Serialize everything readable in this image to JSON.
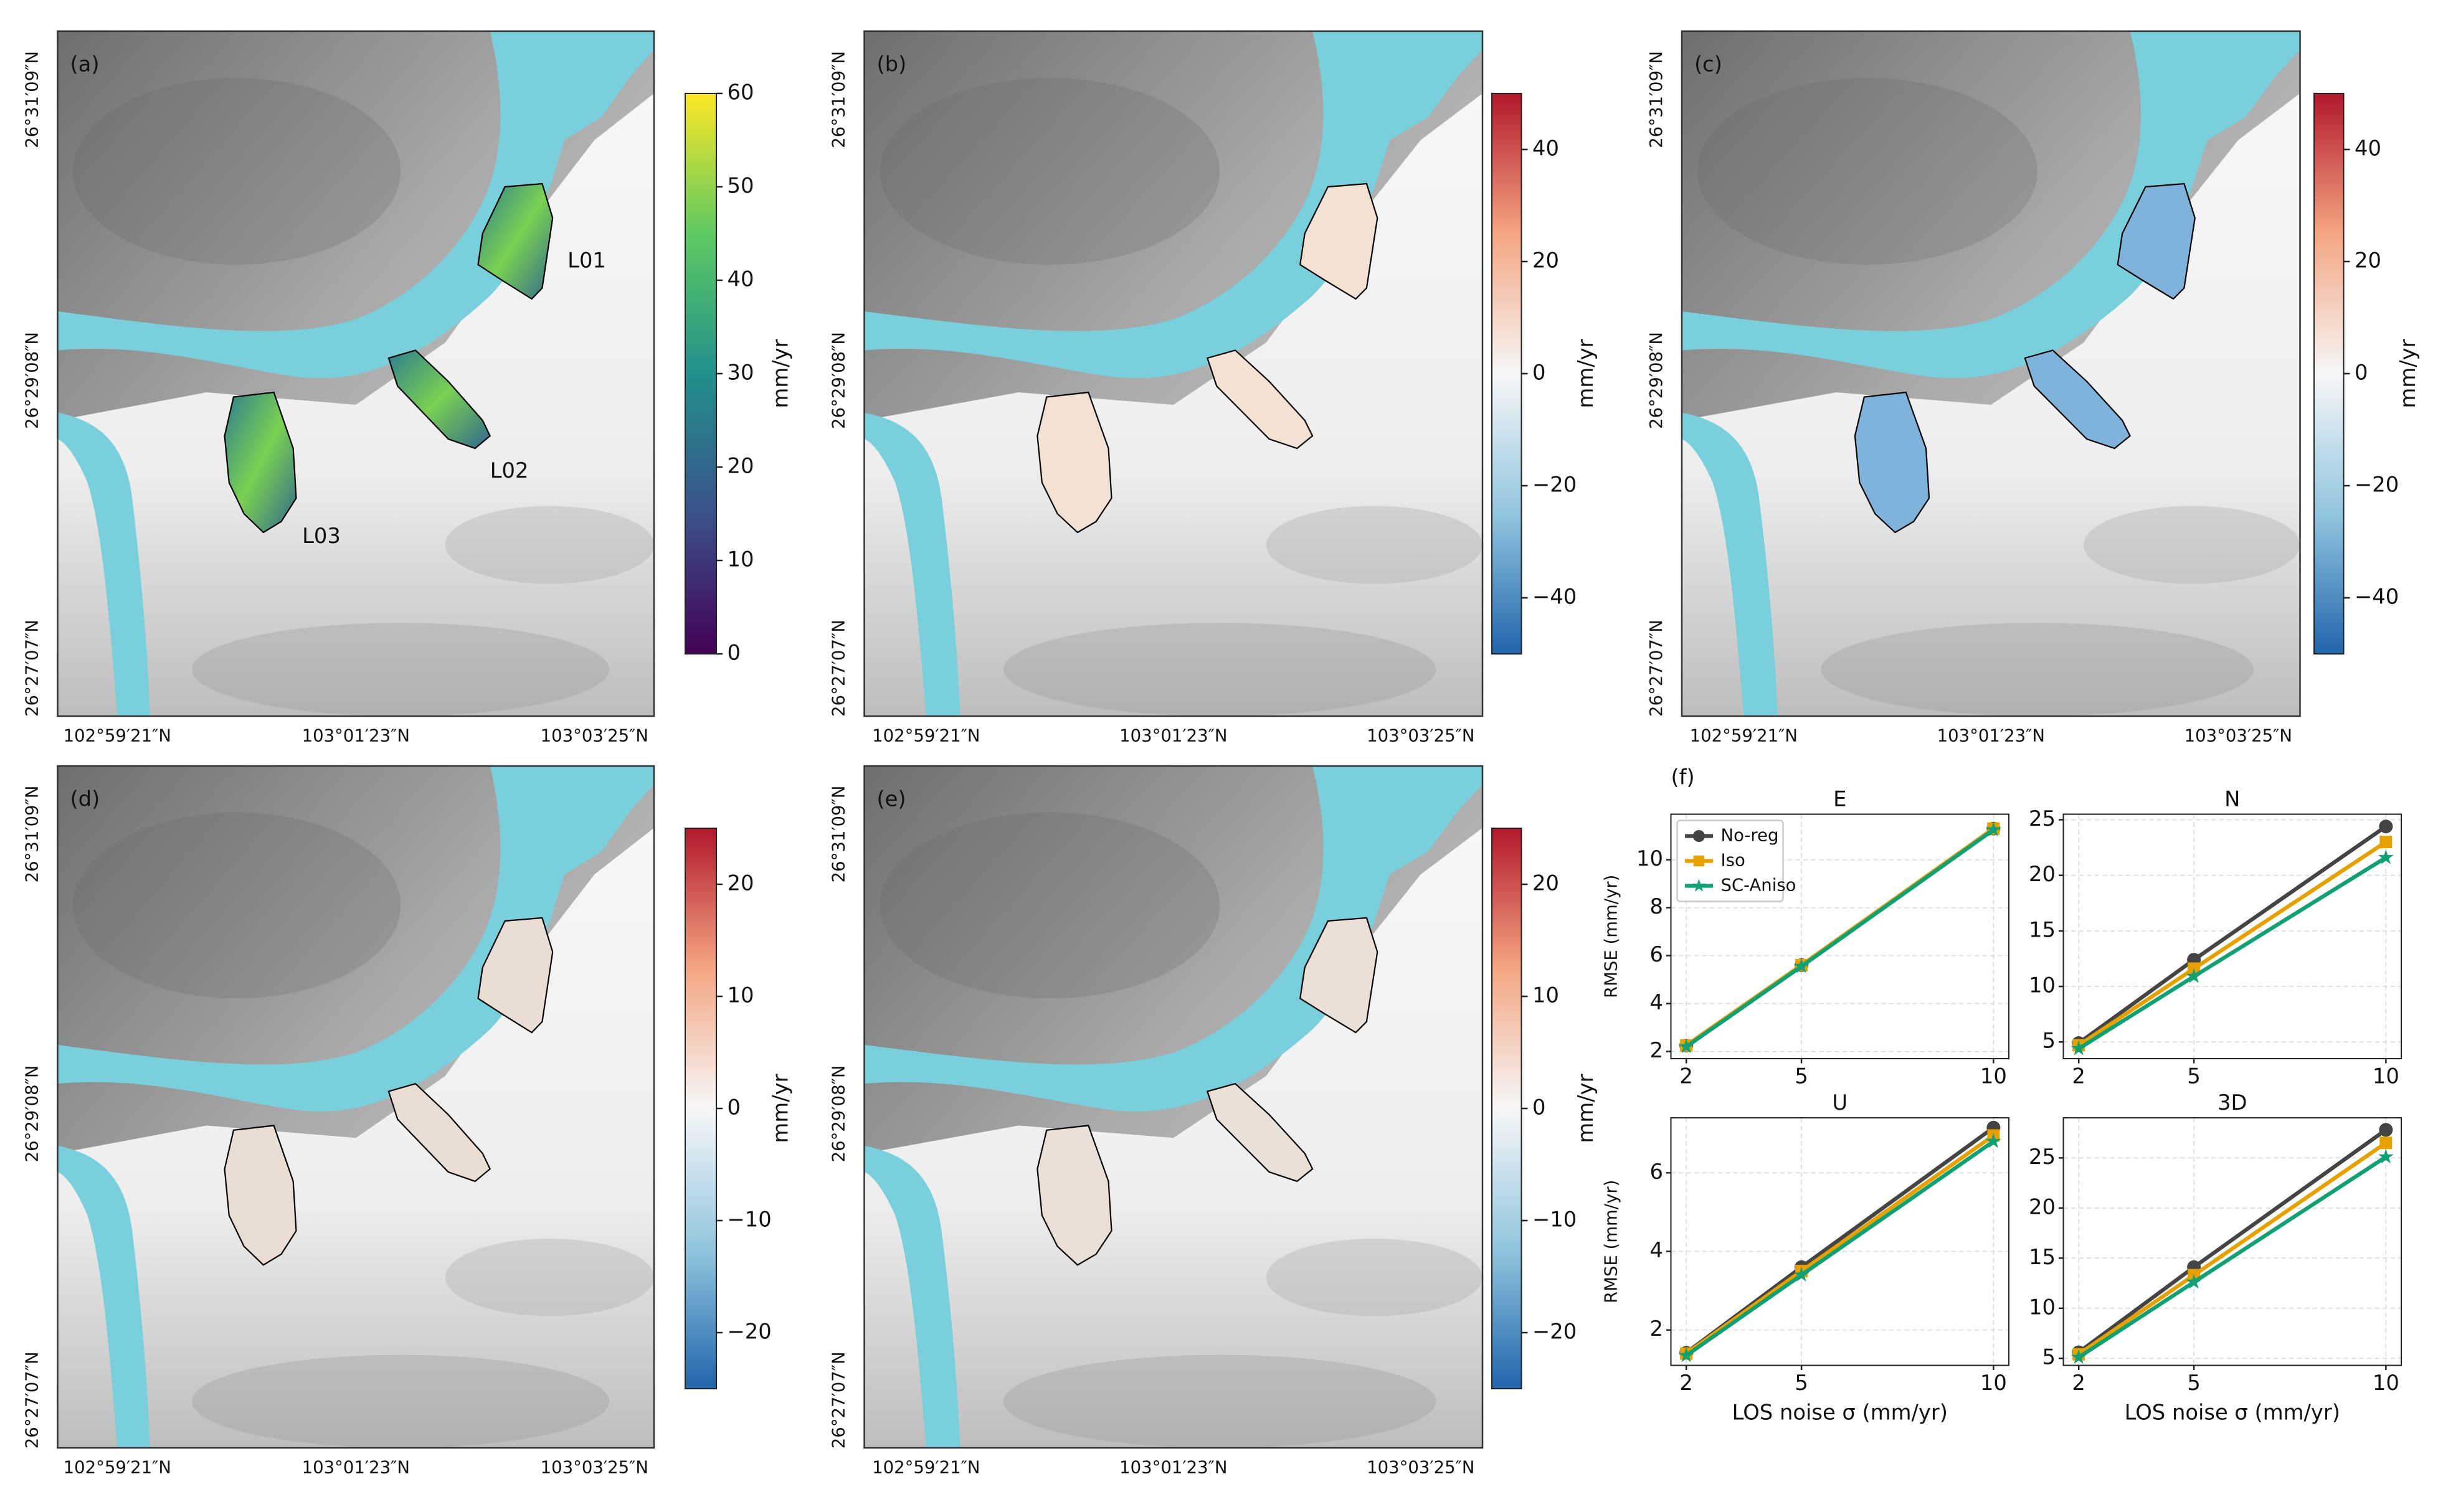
{
  "chart_data": [
    {
      "type": "map",
      "panel_label": "(a)",
      "xtick_labels": [
        "102°59′21″N",
        "103°01′23″N",
        "103°03′25″N"
      ],
      "ytick_labels": [
        "26°31′09″N",
        "26°29′08″N",
        "26°27′07″N"
      ],
      "colorbar": {
        "label": "mm/yr",
        "colormap": "viridis",
        "lim": [
          0,
          60
        ],
        "ticks": [
          0,
          10,
          20,
          30,
          40,
          50,
          60
        ]
      },
      "annotations": [
        "L01",
        "L02",
        "L03"
      ]
    },
    {
      "type": "map",
      "panel_label": "(b)",
      "xtick_labels": [
        "102°59′21″N",
        "103°01′23″N",
        "103°03′25″N"
      ],
      "ytick_labels": [
        "26°31′09″N",
        "26°29′08″N",
        "26°27′07″N"
      ],
      "colorbar": {
        "label": "mm/yr",
        "colormap": "RdBu_r",
        "lim": [
          -50,
          50
        ],
        "ticks": [
          {
            "value": -40,
            "label": "−40"
          },
          {
            "value": -20,
            "label": "−20"
          },
          0,
          20,
          40
        ]
      }
    },
    {
      "type": "map",
      "panel_label": "(c)",
      "xtick_labels": [
        "102°59′21″N",
        "103°01′23″N",
        "103°03′25″N"
      ],
      "ytick_labels": [
        "26°31′09″N",
        "26°29′08″N",
        "26°27′07″N"
      ],
      "colorbar": {
        "label": "mm/yr",
        "colormap": "RdBu_r",
        "lim": [
          -50,
          50
        ],
        "ticks": [
          {
            "value": -40,
            "label": "−40"
          },
          {
            "value": -20,
            "label": "−20"
          },
          0,
          20,
          40
        ]
      }
    },
    {
      "type": "map",
      "panel_label": "(d)",
      "xtick_labels": [
        "102°59′21″N",
        "103°01′23″N",
        "103°03′25″N"
      ],
      "ytick_labels": [
        "26°31′09″N",
        "26°29′08″N",
        "26°27′07″N"
      ],
      "colorbar": {
        "label": "mm/yr",
        "colormap": "RdBu_r",
        "lim": [
          -25,
          25
        ],
        "ticks": [
          {
            "value": -20,
            "label": "−20"
          },
          {
            "value": -10,
            "label": "−10"
          },
          0,
          10,
          20
        ]
      }
    },
    {
      "type": "map",
      "panel_label": "(e)",
      "xtick_labels": [
        "102°59′21″N",
        "103°01′23″N",
        "103°03′25″N"
      ],
      "ytick_labels": [
        "26°31′09″N",
        "26°29′08″N",
        "26°27′07″N"
      ],
      "colorbar": {
        "label": "mm/yr",
        "colormap": "RdBu_r",
        "lim": [
          -25,
          25
        ],
        "ticks": [
          {
            "value": -20,
            "label": "−20"
          },
          {
            "value": -10,
            "label": "−10"
          },
          0,
          10,
          20
        ]
      }
    },
    {
      "type": "line",
      "panel_label": "(f)",
      "title": "E",
      "ylabel": "RMSE (mm/yr)",
      "legend": "upper left",
      "grid": true,
      "x": [
        2,
        5,
        10
      ],
      "xlim": [
        1.6,
        10.4
      ],
      "xticks": [
        2,
        5,
        10
      ],
      "ylim": [
        1.7,
        11.9
      ],
      "yticks": [
        2,
        4,
        6,
        8,
        10
      ],
      "series": [
        {
          "name": "No-reg",
          "color": "#444444",
          "marker": "circle",
          "values": [
            2.25,
            5.6,
            11.3
          ]
        },
        {
          "name": "Iso",
          "color": "#e6a100",
          "marker": "square",
          "values": [
            2.25,
            5.6,
            11.3
          ]
        },
        {
          "name": "SC-Aniso",
          "color": "#11a074",
          "marker": "star",
          "values": [
            2.2,
            5.55,
            11.25
          ]
        }
      ]
    },
    {
      "type": "line",
      "title": "N",
      "grid": true,
      "x": [
        2,
        5,
        10
      ],
      "xlim": [
        1.6,
        10.4
      ],
      "xticks": [
        2,
        5,
        10
      ],
      "ylim": [
        3.5,
        25.5
      ],
      "yticks": [
        5,
        10,
        15,
        20,
        25
      ],
      "series": [
        {
          "name": "No-reg",
          "color": "#444444",
          "marker": "circle",
          "values": [
            4.9,
            12.4,
            24.4
          ]
        },
        {
          "name": "Iso",
          "color": "#e6a100",
          "marker": "square",
          "values": [
            4.7,
            11.6,
            23.0
          ]
        },
        {
          "name": "SC-Aniso",
          "color": "#11a074",
          "marker": "star",
          "values": [
            4.4,
            10.9,
            21.6
          ]
        }
      ]
    },
    {
      "type": "line",
      "title": "U",
      "ylabel": "RMSE (mm/yr)",
      "xlabel": "LOS noise σ (mm/yr)",
      "grid": true,
      "x": [
        2,
        5,
        10
      ],
      "xlim": [
        1.6,
        10.4
      ],
      "xticks": [
        2,
        5,
        10
      ],
      "ylim": [
        1.1,
        7.4
      ],
      "yticks": [
        2,
        4,
        6
      ],
      "series": [
        {
          "name": "No-reg",
          "color": "#444444",
          "marker": "circle",
          "values": [
            1.42,
            3.6,
            7.15
          ]
        },
        {
          "name": "Iso",
          "color": "#e6a100",
          "marker": "square",
          "values": [
            1.4,
            3.5,
            6.95
          ]
        },
        {
          "name": "SC-Aniso",
          "color": "#11a074",
          "marker": "star",
          "values": [
            1.35,
            3.4,
            6.8
          ]
        }
      ]
    },
    {
      "type": "line",
      "title": "3D",
      "xlabel": "LOS noise σ (mm/yr)",
      "grid": true,
      "x": [
        2,
        5,
        10
      ],
      "xlim": [
        1.6,
        10.4
      ],
      "xticks": [
        2,
        5,
        10
      ],
      "ylim": [
        4.3,
        29
      ],
      "yticks": [
        5,
        10,
        15,
        20,
        25
      ],
      "series": [
        {
          "name": "No-reg",
          "color": "#444444",
          "marker": "circle",
          "values": [
            5.6,
            14.1,
            27.8
          ]
        },
        {
          "name": "Iso",
          "color": "#e6a100",
          "marker": "square",
          "values": [
            5.4,
            13.3,
            26.5
          ]
        },
        {
          "name": "SC-Aniso",
          "color": "#11a074",
          "marker": "star",
          "values": [
            5.1,
            12.6,
            25.1
          ]
        }
      ]
    }
  ]
}
